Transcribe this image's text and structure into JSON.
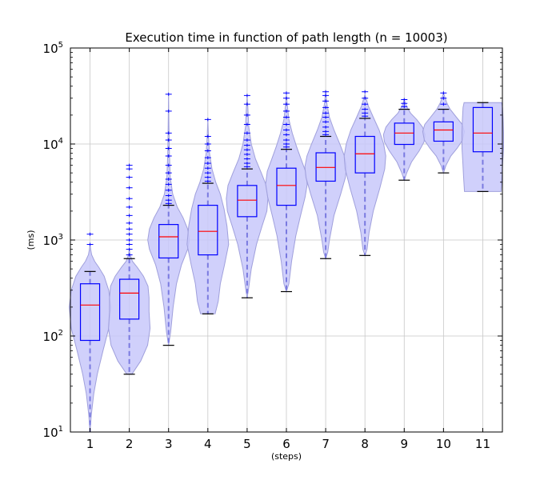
{
  "chart_data": {
    "type": "violin-box",
    "title": "Execution time in function of path length (n = 10003)",
    "xlabel": "(steps)",
    "ylabel": "(ms)",
    "yscale": "log",
    "ylim": [
      10,
      100000
    ],
    "xlim": [
      0.5,
      11.5
    ],
    "grid": true,
    "categories": [
      "1",
      "2",
      "3",
      "4",
      "5",
      "6",
      "7",
      "8",
      "9",
      "10",
      "11"
    ],
    "y_ticks": [
      {
        "value": 10,
        "base": "10",
        "exp": "1"
      },
      {
        "value": 100,
        "base": "10",
        "exp": "2"
      },
      {
        "value": 1000,
        "base": "10",
        "exp": "3"
      },
      {
        "value": 10000,
        "base": "10",
        "exp": "4"
      },
      {
        "value": 100000,
        "base": "10",
        "exp": "5"
      }
    ],
    "colors": {
      "violin_fill": "#c8c8fa",
      "violin_edge": "#a0a0dc",
      "box": "#0000ff",
      "median": "#ff0000",
      "whisker_dash": "#7a7ae0",
      "cap": "#000000",
      "outlier": "#0000ff",
      "grid": "#c8c8c8"
    },
    "boxes": [
      {
        "step": 1,
        "whislo": 10,
        "q1": 90,
        "med": 210,
        "q3": 350,
        "whishi": 470,
        "fliers": [
          900,
          1150
        ]
      },
      {
        "step": 2,
        "whislo": 40,
        "q1": 150,
        "med": 280,
        "q3": 390,
        "whishi": 640,
        "fliers": [
          700,
          800,
          900,
          1000,
          1150,
          1300,
          1500,
          1800,
          2200,
          2700,
          3500,
          4500,
          5500,
          6000
        ]
      },
      {
        "step": 3,
        "whislo": 80,
        "q1": 650,
        "med": 1080,
        "q3": 1450,
        "whishi": 2300,
        "fliers": [
          2400,
          2600,
          2900,
          3300,
          3800,
          4300,
          5000,
          6000,
          7500,
          9000,
          11000,
          13000,
          22000,
          33000
        ]
      },
      {
        "step": 4,
        "whislo": 170,
        "q1": 700,
        "med": 1230,
        "q3": 2300,
        "whishi": 3900,
        "fliers": [
          4100,
          4500,
          5000,
          5600,
          6300,
          7200,
          8500,
          10000,
          12000,
          18000
        ]
      },
      {
        "step": 5,
        "whislo": 250,
        "q1": 1750,
        "med": 2600,
        "q3": 3700,
        "whishi": 5500,
        "fliers": [
          5800,
          6300,
          7000,
          7800,
          8700,
          9700,
          11000,
          13000,
          16000,
          20000,
          26000,
          32000
        ]
      },
      {
        "step": 6,
        "whislo": 290,
        "q1": 2300,
        "med": 3700,
        "q3": 5600,
        "whishi": 8800,
        "fliers": [
          9300,
          10000,
          11000,
          12500,
          14000,
          16000,
          19000,
          22000,
          26000,
          30000,
          34000
        ]
      },
      {
        "step": 7,
        "whislo": 640,
        "q1": 4100,
        "med": 5700,
        "q3": 8100,
        "whishi": 12000,
        "fliers": [
          12500,
          13500,
          15000,
          17000,
          19000,
          21000,
          24000,
          28000,
          32000,
          35000
        ]
      },
      {
        "step": 8,
        "whislo": 690,
        "q1": 5000,
        "med": 7900,
        "q3": 12000,
        "whishi": 18500,
        "fliers": [
          19500,
          21000,
          23000,
          26000,
          30000,
          35000
        ]
      },
      {
        "step": 9,
        "whislo": 4200,
        "q1": 9900,
        "med": 13000,
        "q3": 16500,
        "whishi": 23000,
        "fliers": [
          24500,
          26500,
          29000
        ]
      },
      {
        "step": 10,
        "whislo": 5000,
        "q1": 10700,
        "med": 14000,
        "q3": 17000,
        "whishi": 23000,
        "fliers": [
          26000,
          30000,
          34000
        ]
      },
      {
        "step": 11,
        "whislo": 3200,
        "q1": 8300,
        "med": 13000,
        "q3": 24000,
        "whishi": 27000,
        "fliers": []
      }
    ],
    "violins": [
      {
        "step": 1,
        "profile": [
          [
            10,
            0.0
          ],
          [
            15,
            0.06
          ],
          [
            25,
            0.18
          ],
          [
            40,
            0.35
          ],
          [
            70,
            0.62
          ],
          [
            120,
            0.9
          ],
          [
            200,
            1.0
          ],
          [
            300,
            0.9
          ],
          [
            420,
            0.68
          ],
          [
            520,
            0.42
          ],
          [
            600,
            0.22
          ],
          [
            700,
            0.08
          ],
          [
            800,
            0.03
          ],
          [
            900,
            0.0
          ]
        ]
      },
      {
        "step": 2,
        "profile": [
          [
            40,
            0.12
          ],
          [
            55,
            0.55
          ],
          [
            80,
            0.88
          ],
          [
            120,
            1.0
          ],
          [
            180,
            0.95
          ],
          [
            250,
            0.95
          ],
          [
            330,
            0.9
          ],
          [
            420,
            0.68
          ],
          [
            520,
            0.38
          ],
          [
            600,
            0.15
          ],
          [
            700,
            0.04
          ],
          [
            800,
            0.0
          ]
        ]
      },
      {
        "step": 3,
        "profile": [
          [
            80,
            0.0
          ],
          [
            110,
            0.1
          ],
          [
            200,
            0.22
          ],
          [
            350,
            0.38
          ],
          [
            550,
            0.62
          ],
          [
            800,
            0.92
          ],
          [
            1000,
            1.0
          ],
          [
            1300,
            0.92
          ],
          [
            1700,
            0.7
          ],
          [
            2200,
            0.42
          ],
          [
            3000,
            0.2
          ],
          [
            4500,
            0.08
          ],
          [
            8000,
            0.04
          ],
          [
            15000,
            0.02
          ],
          [
            33000,
            0.0
          ]
        ]
      },
      {
        "step": 4,
        "profile": [
          [
            170,
            0.35
          ],
          [
            230,
            0.5
          ],
          [
            350,
            0.6
          ],
          [
            550,
            0.8
          ],
          [
            900,
            1.0
          ],
          [
            1400,
            0.92
          ],
          [
            2100,
            0.78
          ],
          [
            3000,
            0.6
          ],
          [
            4000,
            0.38
          ],
          [
            5500,
            0.2
          ],
          [
            8000,
            0.08
          ],
          [
            12000,
            0.03
          ],
          [
            18000,
            0.0
          ]
        ]
      },
      {
        "step": 5,
        "profile": [
          [
            250,
            0.0
          ],
          [
            300,
            0.06
          ],
          [
            500,
            0.2
          ],
          [
            900,
            0.45
          ],
          [
            1400,
            0.72
          ],
          [
            2000,
            0.95
          ],
          [
            2700,
            1.0
          ],
          [
            3700,
            0.92
          ],
          [
            5000,
            0.68
          ],
          [
            7000,
            0.4
          ],
          [
            10000,
            0.2
          ],
          [
            15000,
            0.08
          ],
          [
            25000,
            0.03
          ],
          [
            32000,
            0.0
          ]
        ]
      },
      {
        "step": 6,
        "profile": [
          [
            290,
            0.0
          ],
          [
            350,
            0.12
          ],
          [
            600,
            0.25
          ],
          [
            1100,
            0.45
          ],
          [
            1800,
            0.68
          ],
          [
            2800,
            0.9
          ],
          [
            3800,
            1.0
          ],
          [
            5200,
            0.92
          ],
          [
            7000,
            0.7
          ],
          [
            9500,
            0.48
          ],
          [
            13000,
            0.28
          ],
          [
            18000,
            0.12
          ],
          [
            26000,
            0.04
          ],
          [
            34000,
            0.0
          ]
        ]
      },
      {
        "step": 7,
        "profile": [
          [
            640,
            0.0
          ],
          [
            750,
            0.1
          ],
          [
            1000,
            0.18
          ],
          [
            1800,
            0.4
          ],
          [
            3000,
            0.72
          ],
          [
            4500,
            0.95
          ],
          [
            5800,
            1.0
          ],
          [
            7500,
            0.9
          ],
          [
            10000,
            0.68
          ],
          [
            14000,
            0.4
          ],
          [
            19000,
            0.18
          ],
          [
            26000,
            0.06
          ],
          [
            35000,
            0.0
          ]
        ]
      },
      {
        "step": 8,
        "profile": [
          [
            690,
            0.0
          ],
          [
            800,
            0.1
          ],
          [
            1200,
            0.2
          ],
          [
            2000,
            0.4
          ],
          [
            3500,
            0.72
          ],
          [
            5500,
            0.95
          ],
          [
            7500,
            1.0
          ],
          [
            10000,
            0.9
          ],
          [
            14000,
            0.68
          ],
          [
            19000,
            0.4
          ],
          [
            25000,
            0.16
          ],
          [
            33000,
            0.0
          ]
        ]
      },
      {
        "step": 9,
        "profile": [
          [
            4200,
            0.0
          ],
          [
            5000,
            0.12
          ],
          [
            6500,
            0.35
          ],
          [
            8500,
            0.72
          ],
          [
            10500,
            0.95
          ],
          [
            12500,
            1.0
          ],
          [
            15000,
            0.88
          ],
          [
            18000,
            0.6
          ],
          [
            21000,
            0.3
          ],
          [
            25000,
            0.1
          ],
          [
            29000,
            0.0
          ]
        ]
      },
      {
        "step": 10,
        "profile": [
          [
            5000,
            0.0
          ],
          [
            6000,
            0.12
          ],
          [
            7500,
            0.35
          ],
          [
            9000,
            0.65
          ],
          [
            11000,
            0.92
          ],
          [
            13500,
            1.0
          ],
          [
            16000,
            0.9
          ],
          [
            19000,
            0.62
          ],
          [
            23000,
            0.32
          ],
          [
            27000,
            0.15
          ],
          [
            34000,
            0.0
          ]
        ]
      },
      {
        "step": 11,
        "profile": [
          [
            3200,
            0.88
          ],
          [
            4500,
            0.92
          ],
          [
            6500,
            0.96
          ],
          [
            9000,
            1.0
          ],
          [
            13000,
            1.0
          ],
          [
            18000,
            0.98
          ],
          [
            24000,
            0.95
          ],
          [
            27000,
            0.9
          ]
        ]
      }
    ]
  }
}
